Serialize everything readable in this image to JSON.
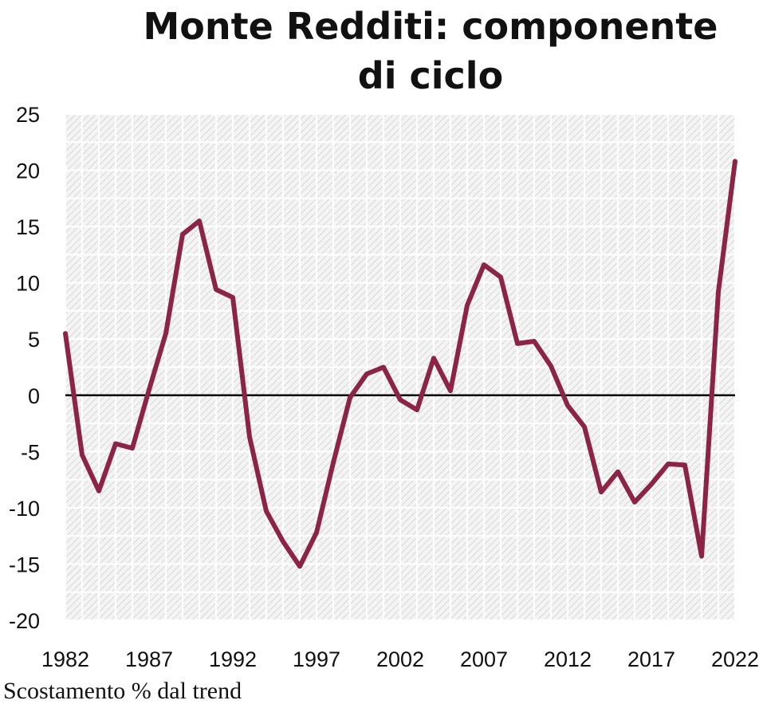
{
  "chart_data": {
    "type": "line",
    "title_line1": "Monte Redditi: componente",
    "title_line2": "di ciclo",
    "ylim": [
      -20,
      25
    ],
    "y_ticks": [
      25,
      20,
      15,
      10,
      5,
      0,
      -5,
      -10,
      -15,
      -20
    ],
    "xlim": [
      1982,
      2022
    ],
    "x_ticks": [
      1982,
      1987,
      1992,
      1997,
      2002,
      2007,
      2012,
      2017,
      2022
    ],
    "zero_line": true,
    "grid": "hatched",
    "line_color": "#8b2445",
    "series": [
      {
        "x": [
          1982,
          1983,
          1984,
          1985,
          1986,
          1987,
          1988,
          1989,
          1990,
          1991,
          1992,
          1993,
          1994,
          1995,
          1996,
          1997,
          1998,
          1999,
          2000,
          2001,
          2002,
          2003,
          2004,
          2005,
          2006,
          2007,
          2008,
          2009,
          2010,
          2011,
          2012,
          2013,
          2014,
          2015,
          2016,
          2017,
          2018,
          2019,
          2020,
          2021,
          2022
        ],
        "values": [
          5.5,
          -5.3,
          -8.5,
          -4.3,
          -4.7,
          0.5,
          5.5,
          14.3,
          15.5,
          9.4,
          8.7,
          -3.7,
          -10.3,
          -13.0,
          -15.2,
          -12.2,
          -6.0,
          -0.2,
          1.9,
          2.5,
          -0.4,
          -1.3,
          3.3,
          0.4,
          8.0,
          11.6,
          10.5,
          4.6,
          4.8,
          2.6,
          -0.9,
          -2.8,
          -8.6,
          -6.8,
          -9.5,
          -7.9,
          -6.1,
          -6.2,
          -14.3,
          9.2,
          20.8
        ]
      }
    ]
  },
  "footnote": "Scostamento % dal trend"
}
